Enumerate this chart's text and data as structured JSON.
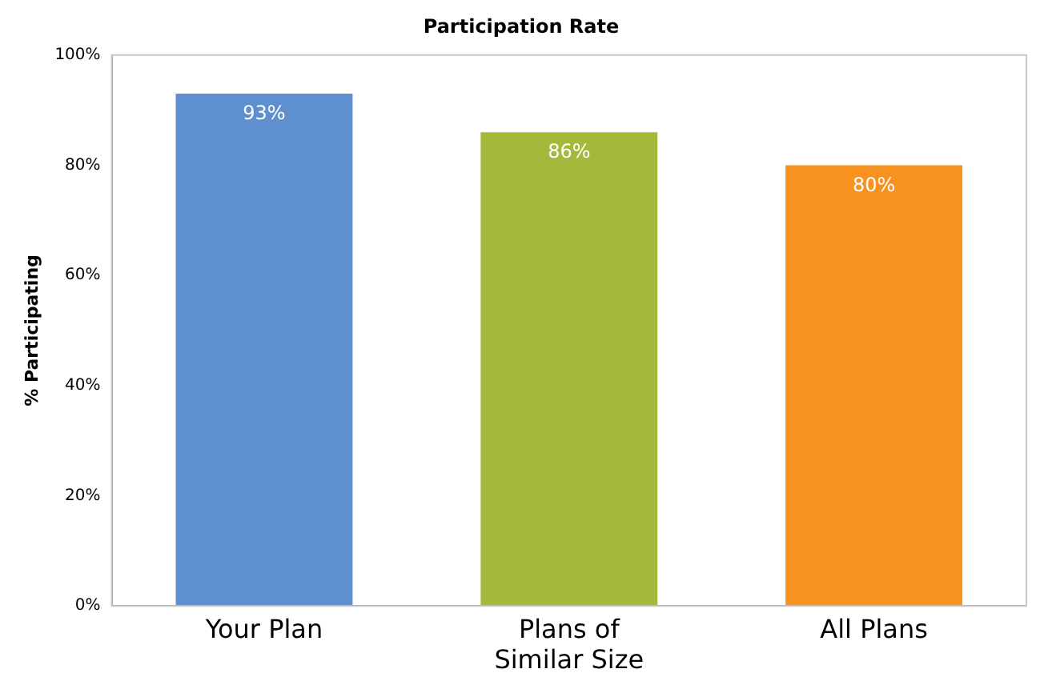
{
  "chart_data": {
    "type": "bar",
    "title": "Participation Rate",
    "ylabel": "% Participating",
    "categories": [
      "Your Plan",
      "Plans of Similar Size",
      "All Plans"
    ],
    "values": [
      93,
      86,
      80
    ],
    "colors": [
      "#5e8fcf",
      "#a3b93b",
      "#f79220"
    ],
    "value_labels": [
      "93%",
      "86%",
      "80%"
    ],
    "ylim": [
      0,
      100
    ],
    "yticks": [
      {
        "value": 0,
        "label": "0%"
      },
      {
        "value": 20,
        "label": "20%"
      },
      {
        "value": 40,
        "label": "40%"
      },
      {
        "value": 60,
        "label": "60%"
      },
      {
        "value": 80,
        "label": "80%"
      },
      {
        "value": 100,
        "label": "100%"
      }
    ],
    "grid": false,
    "legend": false
  }
}
